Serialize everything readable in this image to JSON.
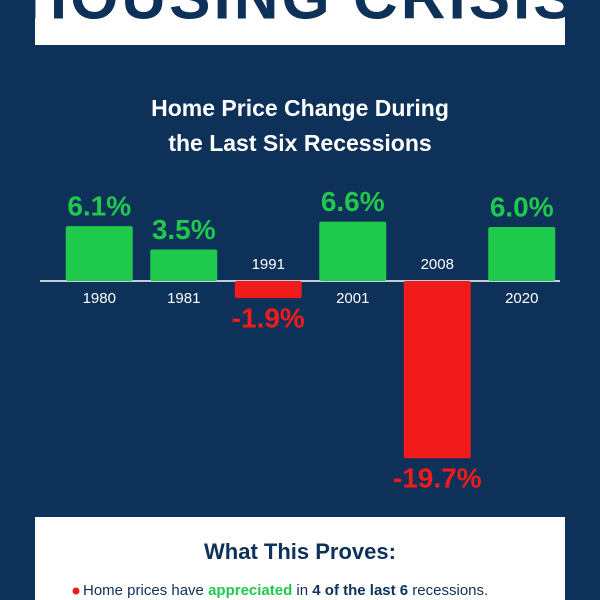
{
  "banner": "HOUSING CRISIS",
  "chart_data": {
    "type": "bar",
    "title": [
      "Home Price Change During",
      "the Last Six Recessions"
    ],
    "categories": [
      "1980",
      "1981",
      "1991",
      "2001",
      "2008",
      "2020"
    ],
    "values": [
      6.1,
      3.5,
      -1.9,
      6.6,
      -19.7,
      6.0
    ],
    "value_labels": [
      "6.1%",
      "3.5%",
      "-1.9%",
      "6.6%",
      "-19.7%",
      "6.0%"
    ],
    "colors": [
      "#1fc94c",
      "#1fc94c",
      "#f21b1b",
      "#1fc94c",
      "#f21b1b",
      "#1fc94c"
    ]
  },
  "summary": {
    "heading": "What This Proves:",
    "bullet": [
      "Home prices have ",
      "appreciated",
      " in ",
      "4 of the last 6",
      " recessions."
    ]
  }
}
